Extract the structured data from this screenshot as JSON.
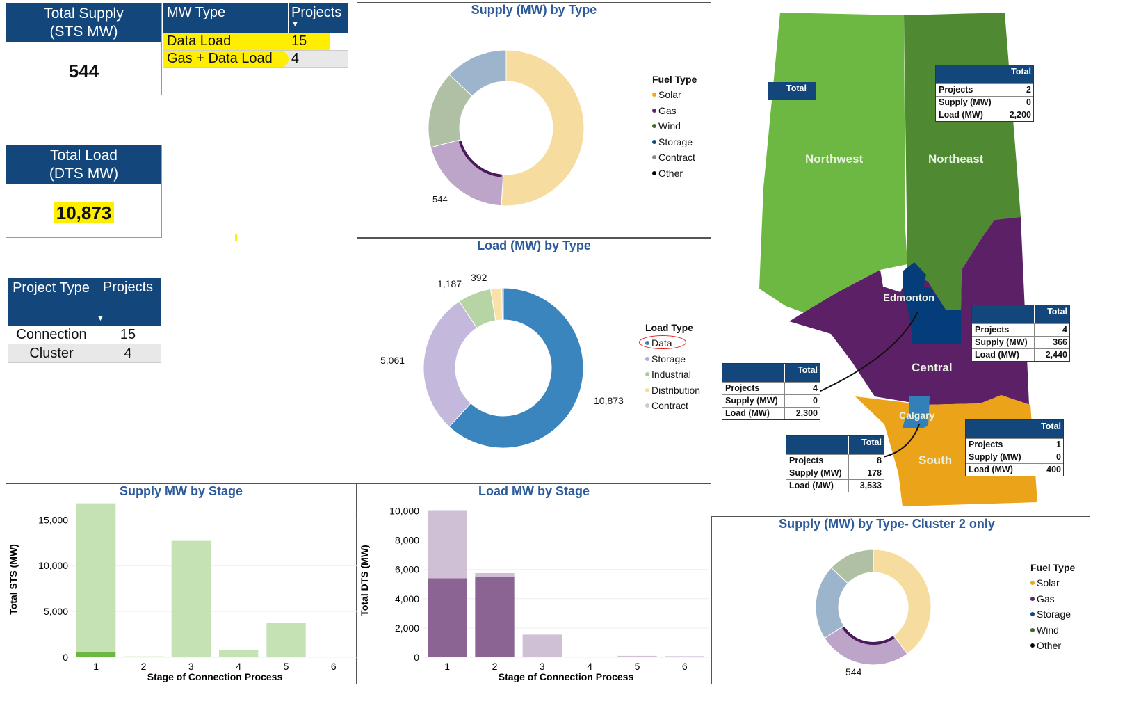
{
  "total_supply": {
    "title1": "Total Supply",
    "title2": "(STS MW)",
    "value": "544"
  },
  "total_load": {
    "title1": "Total Load",
    "title2": "(DTS MW)",
    "value": "10,873"
  },
  "mw_type_table": {
    "headers": [
      "MW Type",
      "Projects"
    ],
    "rows": [
      {
        "type": "Data Load",
        "projects": "15"
      },
      {
        "type": "Gas + Data Load",
        "projects": "4"
      }
    ]
  },
  "project_type_table": {
    "headers": [
      "Project Type",
      "Projects"
    ],
    "rows": [
      {
        "type": "Connection",
        "projects": "15"
      },
      {
        "type": "Cluster",
        "projects": "4"
      }
    ]
  },
  "colors": {
    "header": "#13477c",
    "highlight": "#ffee00"
  },
  "chart_data": [
    {
      "id": "supply_by_type",
      "type": "pie",
      "title": "Supply (MW) by Type",
      "legend_title": "Fuel Type",
      "legend_position": "right",
      "slices": [
        {
          "name": "Solar",
          "share": 0.51,
          "color": "#f7dca0"
        },
        {
          "name": "Gas",
          "share": 0.2,
          "color": "#bca5c8"
        },
        {
          "name": "Contract",
          "share": 0.16,
          "color": "#b0c0a4"
        },
        {
          "name": "Storage",
          "share": 0.13,
          "color": "#9cb4cc"
        }
      ],
      "legend": [
        {
          "name": "Solar",
          "color": "#f0a818"
        },
        {
          "name": "Gas",
          "color": "#5a2a6a"
        },
        {
          "name": "Wind",
          "color": "#3e6a2a"
        },
        {
          "name": "Storage",
          "color": "#13477c"
        },
        {
          "name": "Contract",
          "color": "#888888"
        },
        {
          "name": "Other",
          "color": "#000000"
        }
      ],
      "labels": [
        {
          "text": "544",
          "slice": "Gas"
        }
      ]
    },
    {
      "id": "load_by_type",
      "type": "pie",
      "title": "Load (MW) by Type",
      "legend_title": "Load Type",
      "legend_position": "right",
      "slices": [
        {
          "name": "Data",
          "value": 10873,
          "color": "#3a85bd"
        },
        {
          "name": "Storage",
          "value": 5061,
          "color": "#c4b8dc"
        },
        {
          "name": "Industrial",
          "value": 1187,
          "color": "#b6d4a4"
        },
        {
          "name": "Distribution",
          "value": 392,
          "color": "#f8e2a8"
        },
        {
          "name": "Contract",
          "value": 60,
          "color": "#cccccc"
        }
      ],
      "legend": [
        {
          "name": "Data",
          "color": "#3a85bd"
        },
        {
          "name": "Storage",
          "color": "#b8a8d8"
        },
        {
          "name": "Industrial",
          "color": "#a8cc94"
        },
        {
          "name": "Distribution",
          "color": "#f8dc98"
        },
        {
          "name": "Contract",
          "color": "#cccccc"
        }
      ],
      "labels": [
        {
          "text": "10,873"
        },
        {
          "text": "5,061"
        },
        {
          "text": "1,187"
        },
        {
          "text": "392"
        }
      ]
    },
    {
      "id": "supply_by_stage",
      "type": "bar",
      "title": "Supply MW by Stage",
      "xlabel": "Stage of Connection Process",
      "ylabel": "Total STS (MW)",
      "ylim": [
        0,
        17000
      ],
      "yticks": [
        "0",
        "5,000",
        "10,000",
        "15,000"
      ],
      "ytick_values": [
        0,
        5000,
        10000,
        15000
      ],
      "categories": [
        "1",
        "2",
        "3",
        "4",
        "5",
        "6"
      ],
      "series": [
        {
          "name": "selected",
          "values": [
            544,
            0,
            0,
            0,
            0,
            0
          ],
          "color": "#6ab840"
        },
        {
          "name": "other",
          "values": [
            16256,
            100,
            12700,
            800,
            3750,
            50
          ],
          "color": "#c5e2b4"
        }
      ]
    },
    {
      "id": "load_by_stage",
      "type": "bar",
      "title": "Load MW by Stage",
      "xlabel": "Stage of Connection Process",
      "ylabel": "Total DTS (MW)",
      "ylim": [
        0,
        10500
      ],
      "yticks": [
        "0",
        "2,000",
        "4,000",
        "6,000",
        "8,000",
        "10,000"
      ],
      "ytick_values": [
        0,
        2000,
        4000,
        6000,
        8000,
        10000
      ],
      "categories": [
        "1",
        "2",
        "3",
        "4",
        "5",
        "6"
      ],
      "series": [
        {
          "name": "selected",
          "values": [
            5400,
            5500,
            0,
            0,
            0,
            0
          ],
          "color": "#8b6494"
        },
        {
          "name": "other",
          "values": [
            4650,
            250,
            1550,
            30,
            100,
            80
          ],
          "color": "#d0c0d6"
        }
      ]
    },
    {
      "id": "supply_cluster2",
      "type": "pie",
      "title": "Supply (MW) by Type- Cluster 2 only",
      "legend_title": "Fuel Type",
      "legend_position": "right",
      "slices": [
        {
          "name": "Solar",
          "share": 0.4,
          "color": "#f7dca0"
        },
        {
          "name": "Gas",
          "share": 0.26,
          "color": "#bca5c8"
        },
        {
          "name": "Storage",
          "share": 0.21,
          "color": "#9cb4cc"
        },
        {
          "name": "Wind",
          "share": 0.13,
          "color": "#b0c0a4"
        }
      ],
      "legend": [
        {
          "name": "Solar",
          "color": "#f0a818"
        },
        {
          "name": "Gas",
          "color": "#5a2a6a"
        },
        {
          "name": "Storage",
          "color": "#13477c"
        },
        {
          "name": "Wind",
          "color": "#3e6a2a"
        },
        {
          "name": "Other",
          "color": "#000000"
        }
      ],
      "labels": [
        {
          "text": "544"
        }
      ]
    }
  ],
  "map": {
    "regions": [
      {
        "name": "Northwest",
        "table": {
          "header": "Total",
          "rows": []
        }
      },
      {
        "name": "Northeast",
        "table": {
          "header": "Total",
          "rows": [
            [
              "Projects",
              "2"
            ],
            [
              "Supply (MW)",
              "0"
            ],
            [
              "Load (MW)",
              "2,200"
            ]
          ]
        }
      },
      {
        "name": "Edmonton",
        "table": {
          "header": "Total",
          "rows": [
            [
              "Projects",
              "4"
            ],
            [
              "Supply (MW)",
              "0"
            ],
            [
              "Load (MW)",
              "2,300"
            ]
          ]
        }
      },
      {
        "name": "Central",
        "table": {
          "header": "Total",
          "rows": [
            [
              "Projects",
              "4"
            ],
            [
              "Supply (MW)",
              "366"
            ],
            [
              "Load (MW)",
              "2,440"
            ]
          ]
        }
      },
      {
        "name": "Calgary",
        "table": {
          "header": "Total",
          "rows": [
            [
              "Projects",
              "8"
            ],
            [
              "Supply (MW)",
              "178"
            ],
            [
              "Load (MW)",
              "3,533"
            ]
          ]
        }
      },
      {
        "name": "South",
        "table": {
          "header": "Total",
          "rows": [
            [
              "Projects",
              "1"
            ],
            [
              "Supply (MW)",
              "0"
            ],
            [
              "Load (MW)",
              "400"
            ]
          ]
        }
      }
    ]
  }
}
